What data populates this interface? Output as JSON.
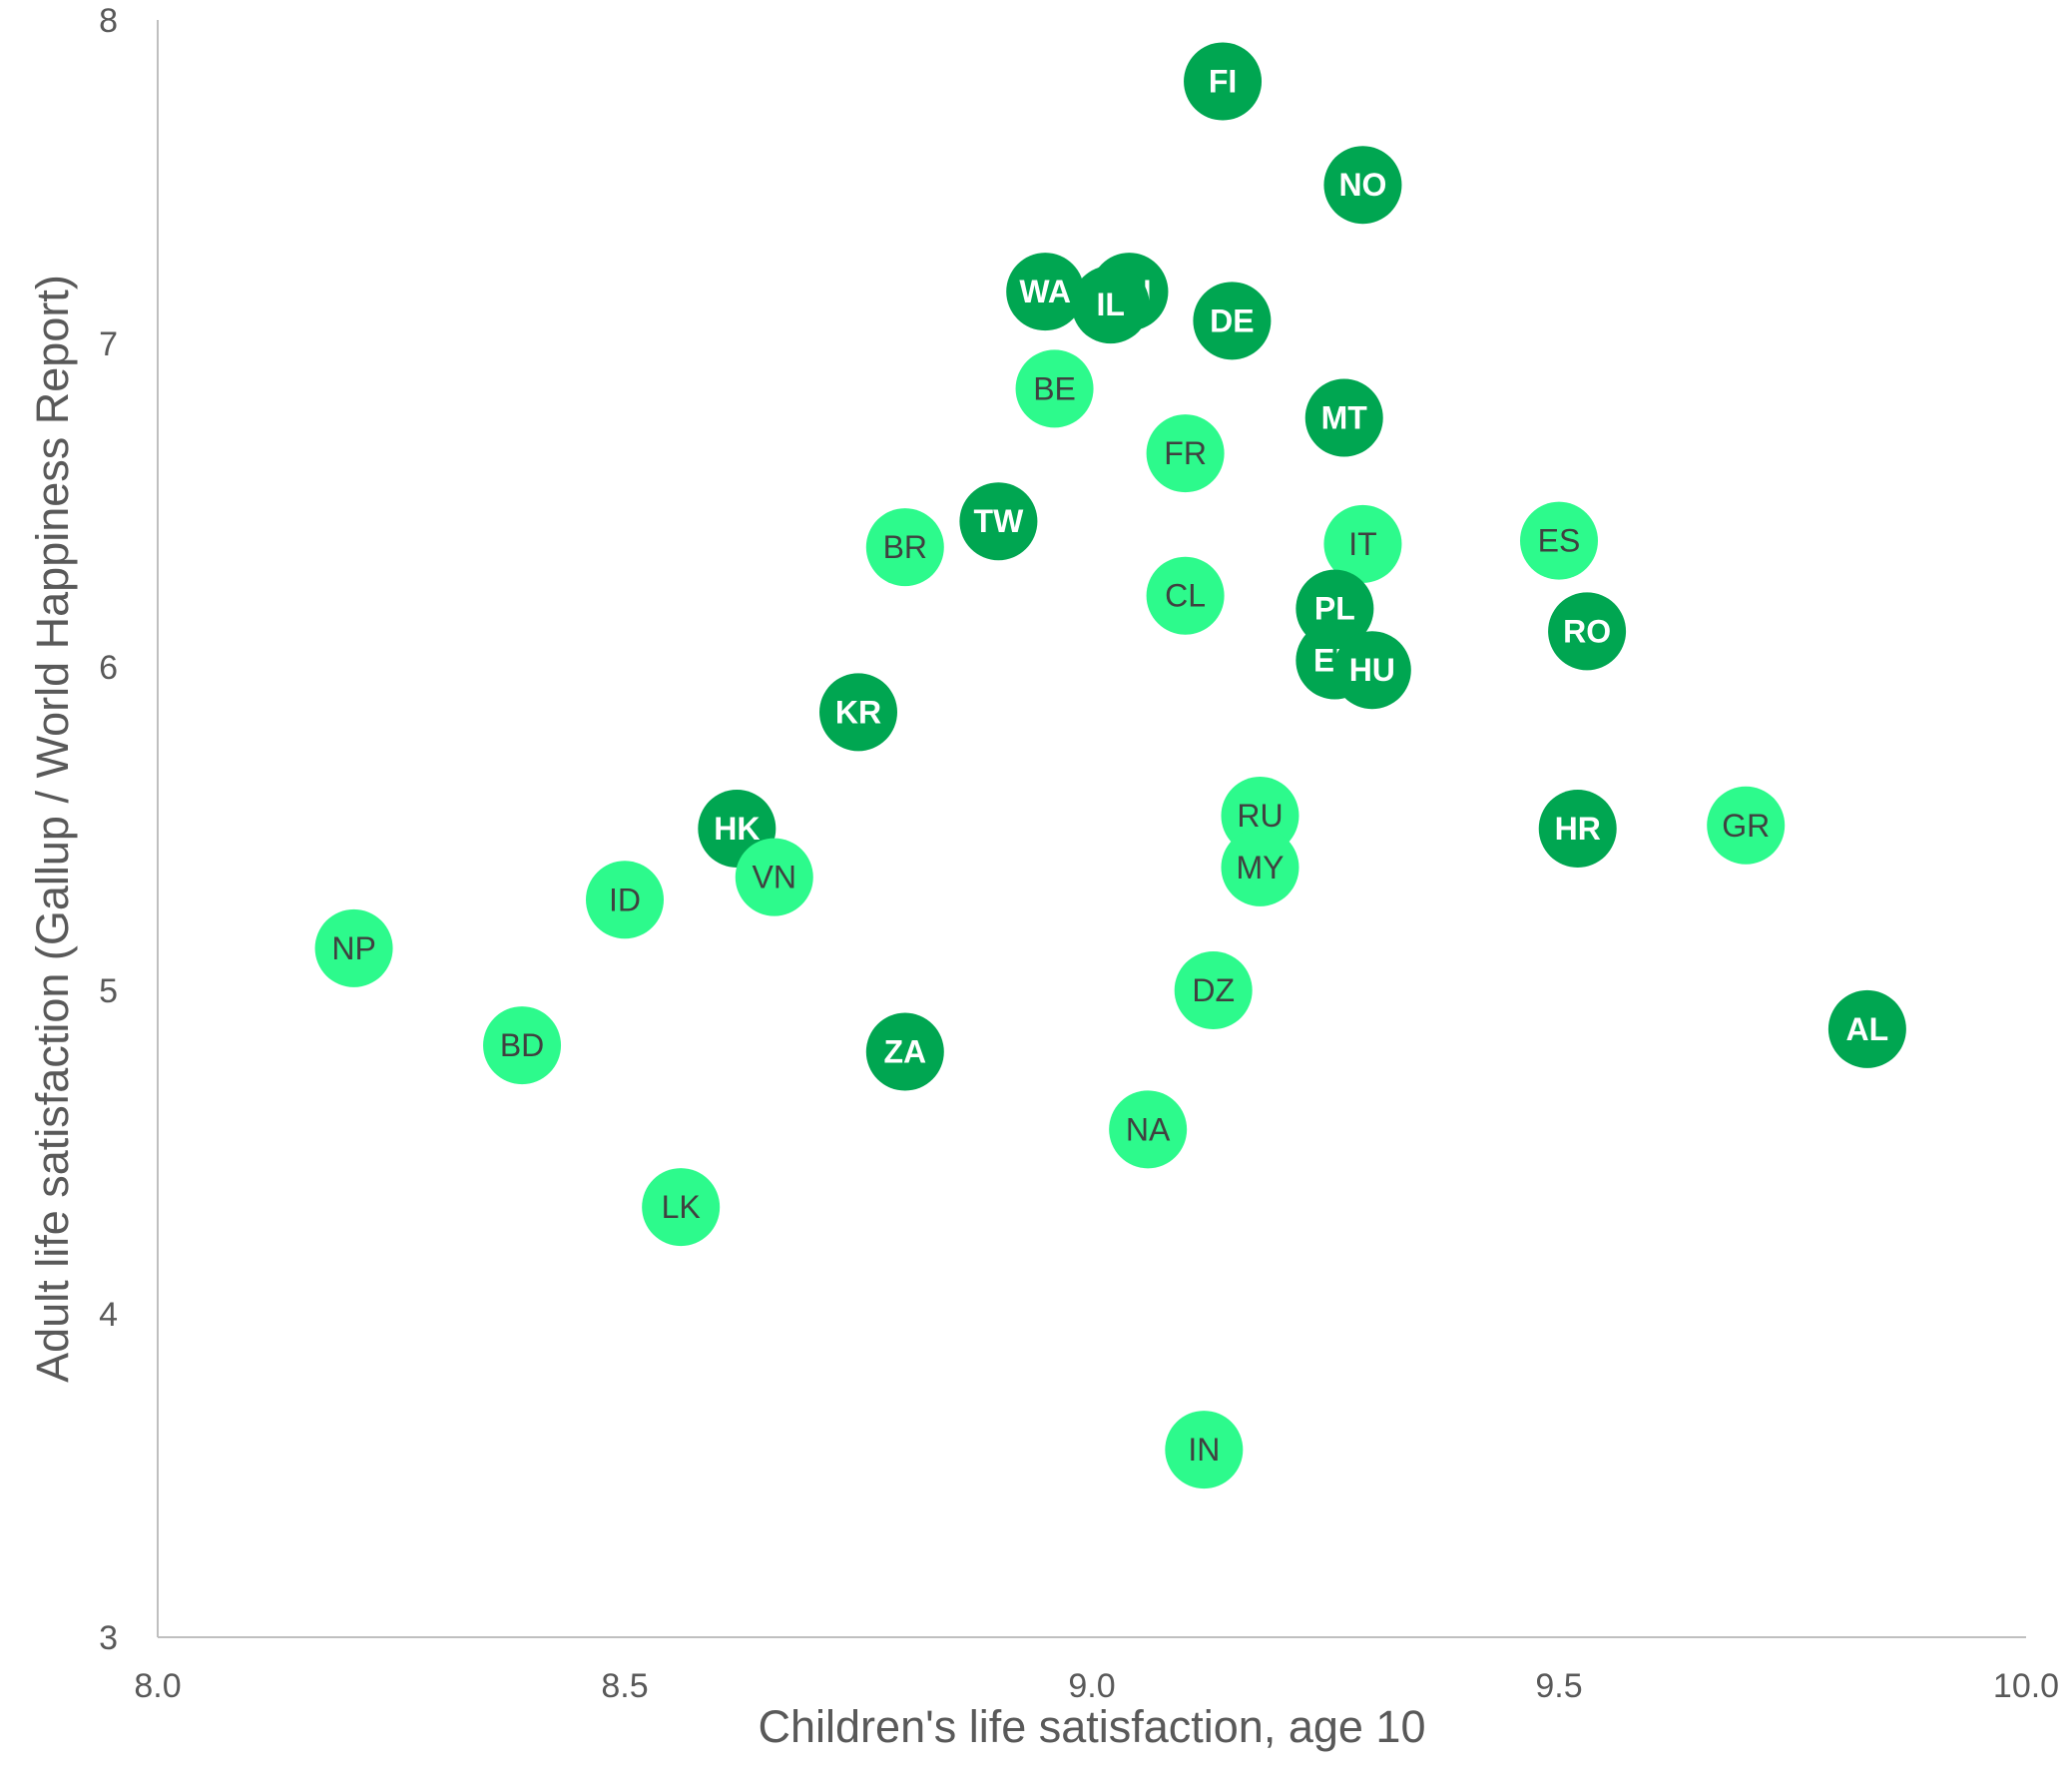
{
  "chart_data": {
    "type": "scatter",
    "title": "",
    "xlabel": "Children's life satisfaction, age 10",
    "ylabel": "Adult life satisfaction (Gallup /  World Happiness Report)",
    "xlim": [
      8.0,
      10.0
    ],
    "ylim": [
      3,
      8
    ],
    "x_ticks": [
      "8.0",
      "8.5",
      "9.0",
      "9.5",
      "10.0"
    ],
    "y_ticks": [
      "3",
      "4",
      "5",
      "6",
      "7",
      "8"
    ],
    "grid": false,
    "legend": "none",
    "colors": {
      "dark": "#00a651",
      "light": "#2dfa8c",
      "axis": "#bfbfbf",
      "text": "#595959"
    },
    "points": [
      {
        "label": "FI",
        "x": 9.14,
        "y": 7.81,
        "group": "dark"
      },
      {
        "label": "NO",
        "x": 9.29,
        "y": 7.49,
        "group": "dark"
      },
      {
        "label": "WA",
        "x": 8.95,
        "y": 7.16,
        "group": "dark"
      },
      {
        "label": "EN",
        "x": 9.04,
        "y": 7.16,
        "group": "dark"
      },
      {
        "label": "IL",
        "x": 9.02,
        "y": 7.12,
        "group": "dark"
      },
      {
        "label": "DE",
        "x": 9.15,
        "y": 7.07,
        "group": "dark"
      },
      {
        "label": "BE",
        "x": 8.96,
        "y": 6.86,
        "group": "light"
      },
      {
        "label": "MT",
        "x": 9.27,
        "y": 6.77,
        "group": "dark"
      },
      {
        "label": "FR",
        "x": 9.1,
        "y": 6.66,
        "group": "light"
      },
      {
        "label": "TW",
        "x": 8.9,
        "y": 6.45,
        "group": "dark"
      },
      {
        "label": "BR",
        "x": 8.8,
        "y": 6.37,
        "group": "light"
      },
      {
        "label": "IT",
        "x": 9.29,
        "y": 6.38,
        "group": "light"
      },
      {
        "label": "ES",
        "x": 9.5,
        "y": 6.39,
        "group": "light"
      },
      {
        "label": "CL",
        "x": 9.1,
        "y": 6.22,
        "group": "light"
      },
      {
        "label": "PL",
        "x": 9.26,
        "y": 6.18,
        "group": "dark"
      },
      {
        "label": "RO",
        "x": 9.53,
        "y": 6.11,
        "group": "dark"
      },
      {
        "label": "EE",
        "x": 9.26,
        "y": 6.02,
        "group": "dark"
      },
      {
        "label": "HU",
        "x": 9.3,
        "y": 5.99,
        "group": "dark"
      },
      {
        "label": "KR",
        "x": 8.75,
        "y": 5.86,
        "group": "dark"
      },
      {
        "label": "RU",
        "x": 9.18,
        "y": 5.54,
        "group": "light"
      },
      {
        "label": "HK",
        "x": 8.62,
        "y": 5.5,
        "group": "dark"
      },
      {
        "label": "HR",
        "x": 9.52,
        "y": 5.5,
        "group": "dark"
      },
      {
        "label": "GR",
        "x": 9.7,
        "y": 5.51,
        "group": "light"
      },
      {
        "label": "MY",
        "x": 9.18,
        "y": 5.38,
        "group": "light"
      },
      {
        "label": "VN",
        "x": 8.66,
        "y": 5.35,
        "group": "light"
      },
      {
        "label": "ID",
        "x": 8.5,
        "y": 5.28,
        "group": "light"
      },
      {
        "label": "NP",
        "x": 8.21,
        "y": 5.13,
        "group": "light"
      },
      {
        "label": "DZ",
        "x": 9.13,
        "y": 5.0,
        "group": "light"
      },
      {
        "label": "AL",
        "x": 9.83,
        "y": 4.88,
        "group": "dark"
      },
      {
        "label": "BD",
        "x": 8.39,
        "y": 4.83,
        "group": "light"
      },
      {
        "label": "ZA",
        "x": 8.8,
        "y": 4.81,
        "group": "dark"
      },
      {
        "label": "NA",
        "x": 9.06,
        "y": 4.57,
        "group": "light"
      },
      {
        "label": "LK",
        "x": 8.56,
        "y": 4.33,
        "group": "light"
      },
      {
        "label": "IN",
        "x": 9.12,
        "y": 3.58,
        "group": "light"
      }
    ]
  }
}
